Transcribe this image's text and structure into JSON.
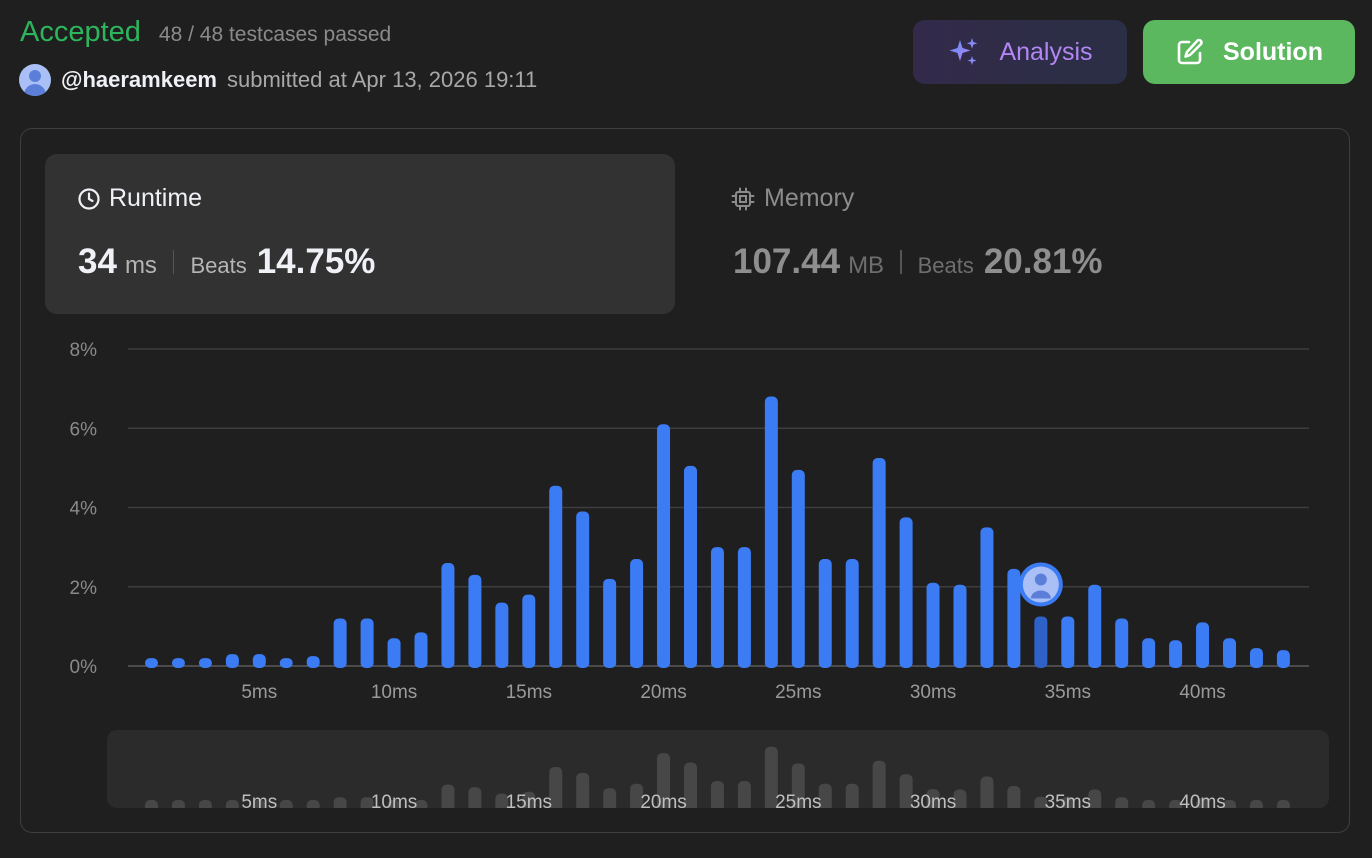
{
  "status": {
    "result": "Accepted",
    "testcases": "48 / 48 testcases passed"
  },
  "submitter": {
    "username": "@haeramkeem",
    "submitted_text": "submitted at Apr 13, 2026 19:11"
  },
  "buttons": {
    "analysis_label": "Analysis",
    "solution_label": "Solution"
  },
  "runtime": {
    "label": "Runtime",
    "value": "34",
    "unit": "ms",
    "beats_label": "Beats",
    "beats_value": "14.75%"
  },
  "memory": {
    "label": "Memory",
    "value": "107.44",
    "unit": "MB",
    "beats_label": "Beats",
    "beats_value": "20.81%"
  },
  "colors": {
    "bar": "#3b7cf5",
    "bar_current": "#2e62c8",
    "accepted": "#2db55d",
    "solution_button": "#5cb85f",
    "analysis_text": "#b386f5"
  },
  "chart_data": {
    "type": "bar",
    "x": [
      1,
      2,
      3,
      4,
      5,
      6,
      7,
      8,
      9,
      10,
      11,
      12,
      13,
      14,
      15,
      16,
      17,
      18,
      19,
      20,
      21,
      22,
      23,
      24,
      25,
      26,
      27,
      28,
      29,
      30,
      31,
      32,
      33,
      34,
      35,
      36,
      37,
      38,
      39,
      40,
      41,
      42,
      43
    ],
    "values": [
      0.2,
      0.2,
      0.2,
      0.3,
      0.3,
      0.2,
      0.25,
      1.2,
      1.2,
      0.7,
      0.85,
      2.6,
      2.3,
      1.6,
      1.8,
      4.55,
      3.9,
      2.2,
      2.7,
      6.1,
      5.05,
      3.0,
      3.0,
      6.8,
      4.95,
      2.7,
      2.7,
      5.25,
      3.75,
      2.1,
      2.05,
      3.5,
      2.45,
      1.25,
      1.25,
      2.05,
      1.2,
      0.7,
      0.65,
      1.1,
      0.7,
      0.45,
      0.4
    ],
    "xticks": [
      "5ms",
      "10ms",
      "15ms",
      "20ms",
      "25ms",
      "30ms",
      "35ms",
      "40ms"
    ],
    "xtick_values": [
      5,
      10,
      15,
      20,
      25,
      30,
      35,
      40
    ],
    "yticks": [
      "0%",
      "2%",
      "4%",
      "6%",
      "8%"
    ],
    "ytick_values": [
      0,
      2,
      4,
      6,
      8
    ],
    "ylim": [
      0,
      8
    ],
    "xlim": [
      0,
      44
    ],
    "current_x": 34,
    "grid": true
  }
}
